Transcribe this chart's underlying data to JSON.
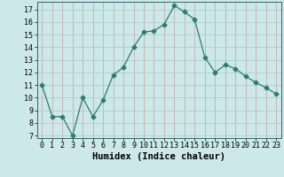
{
  "x": [
    0,
    1,
    2,
    3,
    4,
    5,
    6,
    7,
    8,
    9,
    10,
    11,
    12,
    13,
    14,
    15,
    16,
    17,
    18,
    19,
    20,
    21,
    22,
    23
  ],
  "y": [
    11,
    8.5,
    8.5,
    7,
    10,
    8.5,
    9.8,
    11.8,
    12.4,
    14.0,
    15.2,
    15.3,
    15.8,
    17.3,
    16.8,
    16.2,
    13.2,
    12.0,
    12.6,
    12.3,
    11.7,
    11.2,
    10.8,
    10.3
  ],
  "xlabel": "Humidex (Indice chaleur)",
  "xlim": [
    -0.5,
    23.5
  ],
  "ylim": [
    6.8,
    17.6
  ],
  "yticks": [
    7,
    8,
    9,
    10,
    11,
    12,
    13,
    14,
    15,
    16,
    17
  ],
  "line_color": "#2e7d6e",
  "marker": "D",
  "marker_size": 2.5,
  "bg_color": "#cce8e8",
  "vgrid_color": "#c8a0a0",
  "hgrid_color": "#a8cccc",
  "tick_fontsize": 6,
  "label_fontsize": 7.5
}
